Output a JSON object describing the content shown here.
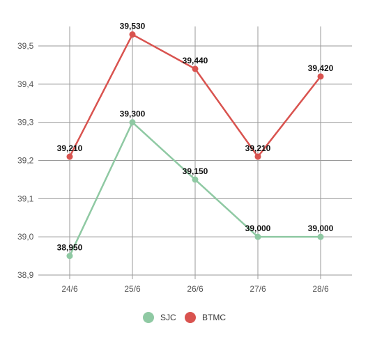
{
  "chart_data": {
    "type": "line",
    "categories": [
      "24/6",
      "25/6",
      "26/6",
      "27/6",
      "28/6"
    ],
    "series": [
      {
        "name": "SJC",
        "color": "#8fc9a3",
        "values": [
          38.95,
          39.3,
          39.15,
          39.0,
          39.0
        ],
        "labels": [
          "38,950",
          "39,300",
          "39,150",
          "39,000",
          "39,000"
        ]
      },
      {
        "name": "BTMC",
        "color": "#d9534f",
        "values": [
          39.21,
          39.53,
          39.44,
          39.21,
          39.42
        ],
        "labels": [
          "39,210",
          "39,530",
          "39,440",
          "39,210",
          "39,420"
        ]
      }
    ],
    "yticks": [
      38.9,
      39.0,
      39.1,
      39.2,
      39.3,
      39.4,
      39.5
    ],
    "ytick_labels": [
      "38,9",
      "39,0",
      "39,1",
      "39,2",
      "39,3",
      "39,4",
      "39,5"
    ],
    "ylim": [
      38.9,
      39.5
    ],
    "grid": true,
    "legend_position": "bottom"
  }
}
